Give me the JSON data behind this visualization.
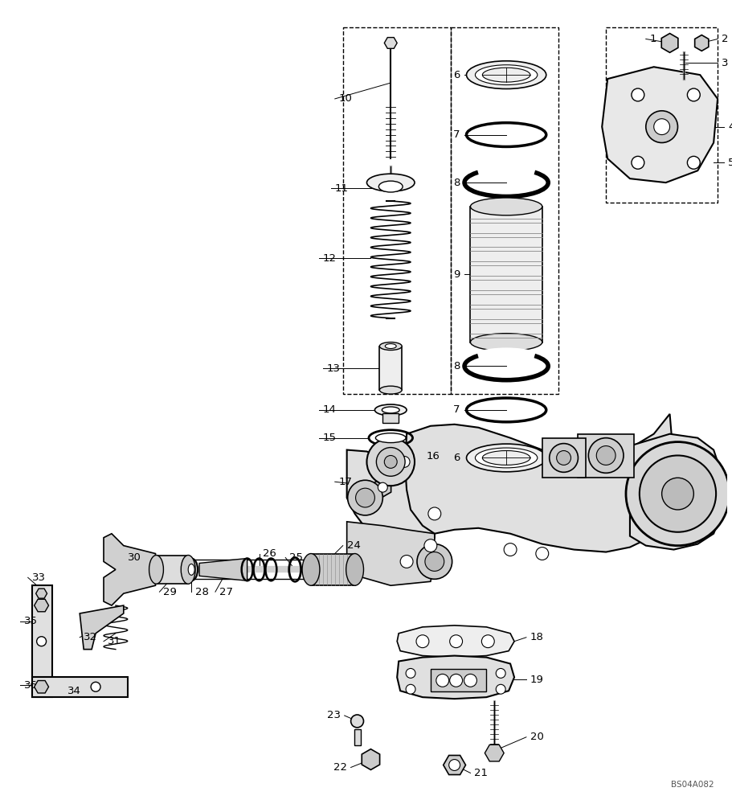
{
  "bg_color": "#ffffff",
  "lc": "#000000",
  "fig_w": 9.12,
  "fig_h": 10.0,
  "dpi": 100,
  "watermark": "BS04A082",
  "font_size": 9
}
